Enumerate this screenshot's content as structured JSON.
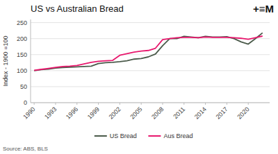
{
  "chart_data": {
    "type": "line",
    "title": "US vs Australian Bread",
    "ylabel": "Index - 1900 =100",
    "annotations": [
      "Source: ABS, BLS",
      "+≡M"
    ],
    "x": [
      1990,
      1991,
      1992,
      1993,
      1994,
      1995,
      1996,
      1997,
      1998,
      1999,
      2000,
      2001,
      2002,
      2003,
      2004,
      2005,
      2006,
      2007,
      2008,
      2009,
      2010,
      2011,
      2012,
      2013,
      2014,
      2015,
      2016,
      2017,
      2018,
      2019,
      2020,
      2021,
      2022
    ],
    "series": [
      {
        "name": "US Bread",
        "color": "#4a5a4a",
        "values": [
          100,
          103,
          105,
          108,
          110,
          111,
          112,
          113,
          114,
          122,
          125,
          126,
          128,
          131,
          136,
          138,
          143,
          152,
          178,
          200,
          200,
          207,
          205,
          203,
          207,
          205,
          205,
          206,
          200,
          190,
          183,
          200,
          218
        ]
      },
      {
        "name": "Aus Bread",
        "color": "#e8186d",
        "values": [
          101,
          104,
          107,
          110,
          113,
          114,
          116,
          121,
          126,
          129,
          131,
          132,
          148,
          153,
          158,
          161,
          163,
          170,
          197,
          200,
          203,
          204,
          204,
          203,
          205,
          204,
          204,
          204,
          203,
          201,
          198,
          203,
          208
        ]
      }
    ],
    "xlim": [
      1989.5,
      2023
    ],
    "xticks": [
      1990,
      1993,
      1996,
      1999,
      2002,
      2005,
      2008,
      2011,
      2014,
      2017,
      2020
    ],
    "ylim": [
      0,
      260
    ],
    "yticks": [
      0,
      50,
      100,
      150,
      200,
      250
    ],
    "grid": true,
    "legend": "bottom"
  }
}
